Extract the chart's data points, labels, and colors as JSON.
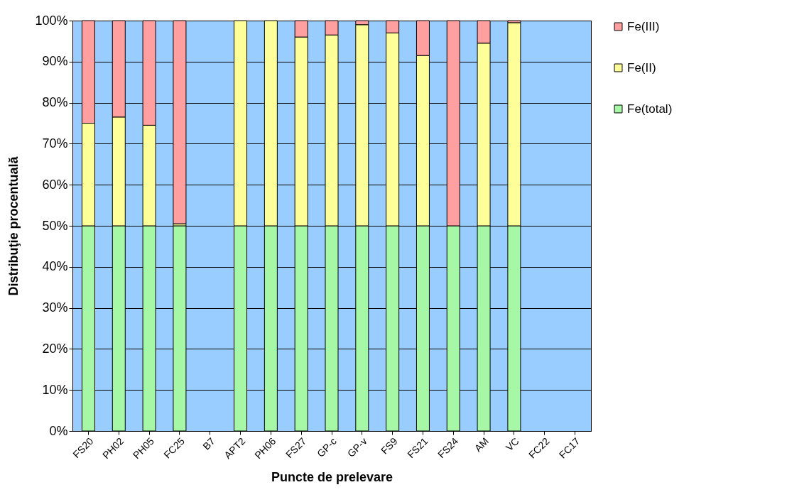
{
  "chart_data": {
    "type": "bar",
    "stacked": true,
    "xlabel": "Puncte de prelevare",
    "ylabel": "Distribuţie  procentuală",
    "categories": [
      "FS20",
      "PH02",
      "PH05",
      "FC25",
      "B7",
      "APT2",
      "PH06",
      "FS27",
      "GP-c",
      "GP-v",
      "FS9",
      "FS21",
      "FS24",
      "AM",
      "VC",
      "FC22",
      "FC17"
    ],
    "series": [
      {
        "name": "Fe(total)",
        "color": "#a6f7a6",
        "values": [
          50,
          50,
          50,
          50,
          0,
          50,
          50,
          50,
          50,
          50,
          50,
          50,
          50,
          50,
          50,
          0,
          0
        ]
      },
      {
        "name": "Fe(II)",
        "color": "#ffff99",
        "values": [
          25,
          26.5,
          24.5,
          0.5,
          0,
          50,
          50,
          46,
          46.5,
          49,
          47,
          41.5,
          0,
          44.5,
          49.5,
          0,
          0
        ]
      },
      {
        "name": "Fe(III)",
        "color": "#ff9f9f",
        "values": [
          25,
          23.5,
          25.5,
          49.5,
          0,
          0,
          0,
          4,
          3.5,
          1,
          3,
          8.5,
          50,
          5.5,
          0.5,
          0,
          0
        ]
      }
    ],
    "ylim": [
      0,
      100
    ],
    "yticks": [
      {
        "value": 0,
        "label": "0%"
      },
      {
        "value": 10,
        "label": "10%"
      },
      {
        "value": 20,
        "label": "20%"
      },
      {
        "value": 30,
        "label": "30%"
      },
      {
        "value": 40,
        "label": "40%"
      },
      {
        "value": 50,
        "label": "50%"
      },
      {
        "value": 60,
        "label": "60%"
      },
      {
        "value": 70,
        "label": "70%"
      },
      {
        "value": 80,
        "label": "80%"
      },
      {
        "value": 90,
        "label": "90%"
      },
      {
        "value": 100,
        "label": "100%"
      }
    ],
    "grid": "y",
    "legend": "top right"
  }
}
